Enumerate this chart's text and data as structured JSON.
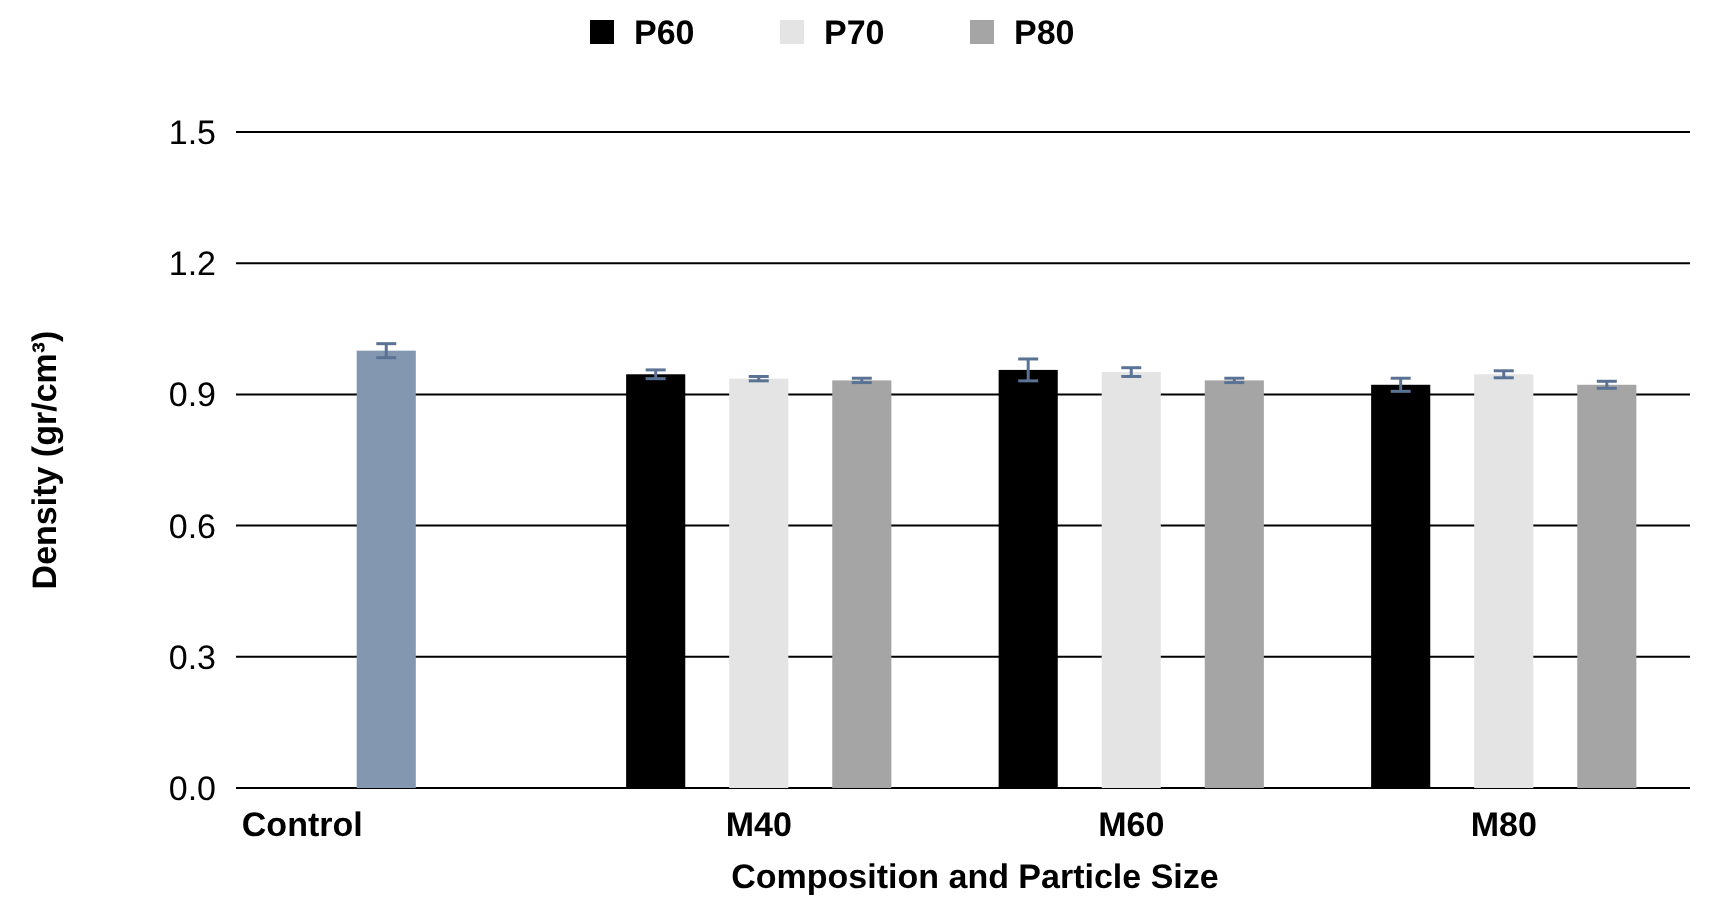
{
  "chart_data": {
    "type": "bar",
    "xlabel": "Composition and Particle Size",
    "ylabel": "Density (gr/cm³)",
    "categories": [
      "Control",
      "M40",
      "M60",
      "M80"
    ],
    "series": [
      {
        "name": "P60",
        "color": "#000000",
        "values": [
          null,
          0.946,
          0.956,
          0.922
        ],
        "errors": [
          null,
          0.01,
          0.025,
          0.015
        ]
      },
      {
        "name": "P70",
        "color": "#e4e4e4",
        "colors": [
          "#8497b0",
          "#e4e4e4",
          "#e4e4e4",
          "#e4e4e4"
        ],
        "values": [
          1.0,
          0.936,
          0.951,
          0.946
        ],
        "errors": [
          0.016,
          0.005,
          0.01,
          0.008
        ]
      },
      {
        "name": "P80",
        "color": "#a5a5a5",
        "values": [
          null,
          0.932,
          0.932,
          0.922
        ],
        "errors": [
          null,
          0.005,
          0.005,
          0.008
        ]
      }
    ],
    "ylim": [
      0,
      1.5
    ],
    "yticks": [
      {
        "value": 0,
        "label": "0.0"
      },
      0.3,
      0.6,
      0.9,
      1.2,
      1.5
    ],
    "grid": "y",
    "legend": "top"
  }
}
